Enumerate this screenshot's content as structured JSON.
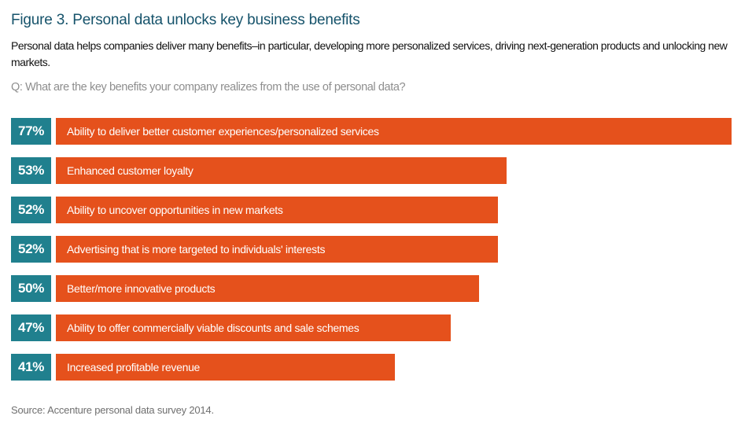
{
  "colors": {
    "title": "#16536b",
    "bar": "#e5511c",
    "value_box": "#20808e",
    "muted_text": "#8e8e8e",
    "source_text": "#6f6f6f",
    "bar_text": "#ffffff",
    "background": "#ffffff"
  },
  "chart_data": {
    "type": "bar",
    "orientation": "horizontal",
    "title": "Figure 3. Personal data unlocks key business benefits",
    "subtitle": "Personal data helps companies deliver many benefits–in particular, developing more personalized services, driving next-generation products and unlocking new markets.",
    "question": "Q: What are the key benefits your company realizes from the use of personal data?",
    "source": "Source: Accenture personal data survey 2014.",
    "unit": "%",
    "xlim": [
      0,
      77
    ],
    "grid": false,
    "legend": "none",
    "categories": [
      "Ability to deliver better customer experiences/personalized services",
      "Enhanced customer loyalty",
      "Ability to uncover opportunities in new markets",
      "Advertising that is more targeted to individuals' interests",
      "Better/more innovative products",
      "Ability to offer commercially viable discounts and sale schemes",
      "Increased profitable revenue"
    ],
    "values": [
      77,
      53,
      52,
      52,
      50,
      47,
      41
    ]
  }
}
